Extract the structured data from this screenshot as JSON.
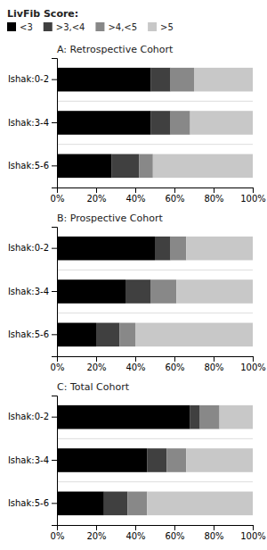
{
  "chart_data": [
    {
      "type": "bar",
      "orientation": "horizontal",
      "stacked": true,
      "title": "A: Retrospective Cohort",
      "legend": "upper left",
      "legend_title": "LivFib Score:",
      "categories": [
        "Ishak:5-6",
        "Ishak:3-4",
        "Ishak:0-2"
      ],
      "series": [
        {
          "name": "<3",
          "color": "#000000",
          "values": [
            28,
            48,
            48
          ]
        },
        {
          "name": ">3,<4",
          "color": "#404040",
          "values": [
            14,
            10,
            10
          ]
        },
        {
          "name": ">4,<5",
          "color": "#888888",
          "values": [
            7,
            10,
            12
          ]
        },
        {
          "name": ">5",
          "color": "#c8c8c8",
          "values": [
            51,
            32,
            30
          ]
        }
      ],
      "xlim": [
        0,
        100
      ],
      "xticks": [
        {
          "value": 0,
          "label": "0%"
        },
        {
          "value": 20,
          "label": "20%"
        },
        {
          "value": 40,
          "label": "40%"
        },
        {
          "value": 60,
          "label": "60%"
        },
        {
          "value": 80,
          "label": "80%"
        },
        {
          "value": 100,
          "label": "100%"
        }
      ]
    },
    {
      "type": "bar",
      "orientation": "horizontal",
      "stacked": true,
      "title": "B: Prospective Cohort",
      "categories": [
        "Ishak:5-6",
        "Ishak:3-4",
        "Ishak:0-2"
      ],
      "series": [
        {
          "color": "#000000",
          "values": [
            20,
            35,
            50
          ]
        },
        {
          "color": "#404040",
          "values": [
            12,
            13,
            8
          ]
        },
        {
          "color": "#888888",
          "values": [
            8,
            13,
            8
          ]
        },
        {
          "color": "#c8c8c8",
          "values": [
            60,
            39,
            34
          ]
        }
      ],
      "xlim": [
        0,
        100
      ],
      "xticks": [
        {
          "value": 0,
          "label": "0%"
        },
        {
          "value": 20,
          "label": "20%"
        },
        {
          "value": 40,
          "label": "40%"
        },
        {
          "value": 60,
          "label": "60%"
        },
        {
          "value": 80,
          "label": "80%"
        },
        {
          "value": 100,
          "label": "100%"
        }
      ]
    },
    {
      "type": "bar",
      "orientation": "horizontal",
      "stacked": true,
      "title": "C: Total Cohort",
      "categories": [
        "Ishak:5-6",
        "Ishak:3-4",
        "Ishak:0-2"
      ],
      "series": [
        {
          "color": "#000000",
          "values": [
            24,
            46,
            68
          ]
        },
        {
          "color": "#404040",
          "values": [
            12,
            10,
            5
          ]
        },
        {
          "color": "#888888",
          "values": [
            10,
            10,
            10
          ]
        },
        {
          "color": "#c8c8c8",
          "values": [
            54,
            34,
            17
          ]
        }
      ],
      "xlim": [
        0,
        100
      ],
      "xticks": [
        {
          "value": 0,
          "label": "0%"
        },
        {
          "value": 20,
          "label": "20%"
        },
        {
          "value": 40,
          "label": "40%"
        },
        {
          "value": 60,
          "label": "60%"
        },
        {
          "value": 80,
          "label": "80%"
        },
        {
          "value": 100,
          "label": "100%"
        }
      ]
    }
  ]
}
